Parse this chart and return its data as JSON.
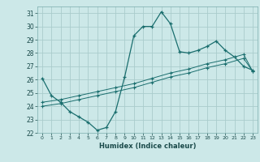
{
  "title": "",
  "xlabel": "Humidex (Indice chaleur)",
  "background_color": "#cce8e8",
  "grid_color": "#aacccc",
  "line_color": "#1a6e6e",
  "xlim": [
    -0.5,
    23.5
  ],
  "ylim": [
    22,
    31.5
  ],
  "xticks": [
    0,
    1,
    2,
    3,
    4,
    5,
    6,
    7,
    8,
    9,
    10,
    11,
    12,
    13,
    14,
    15,
    16,
    17,
    18,
    19,
    20,
    21,
    22,
    23
  ],
  "yticks": [
    22,
    23,
    24,
    25,
    26,
    27,
    28,
    29,
    30,
    31
  ],
  "curve1_x": [
    0,
    1,
    2,
    3,
    4,
    5,
    6,
    7,
    8,
    9,
    10,
    11,
    12,
    13,
    14,
    15,
    16,
    17,
    18,
    19,
    20,
    21,
    22,
    23
  ],
  "curve1_y": [
    26.1,
    24.8,
    24.3,
    23.6,
    23.2,
    22.8,
    22.2,
    22.4,
    23.6,
    26.2,
    29.3,
    30.0,
    30.0,
    31.1,
    30.2,
    28.1,
    28.0,
    28.2,
    28.5,
    28.9,
    28.2,
    27.7,
    27.0,
    26.7
  ],
  "curve2_x": [
    0,
    2,
    4,
    6,
    8,
    10,
    12,
    14,
    16,
    18,
    20,
    22,
    23
  ],
  "curve2_y": [
    24.3,
    24.5,
    24.8,
    25.1,
    25.4,
    25.7,
    26.1,
    26.5,
    26.8,
    27.2,
    27.5,
    27.9,
    26.6
  ],
  "curve3_x": [
    0,
    2,
    4,
    6,
    8,
    10,
    12,
    14,
    16,
    18,
    20,
    22,
    23
  ],
  "curve3_y": [
    24.0,
    24.2,
    24.5,
    24.8,
    25.1,
    25.4,
    25.8,
    26.2,
    26.5,
    26.9,
    27.2,
    27.6,
    26.6
  ]
}
